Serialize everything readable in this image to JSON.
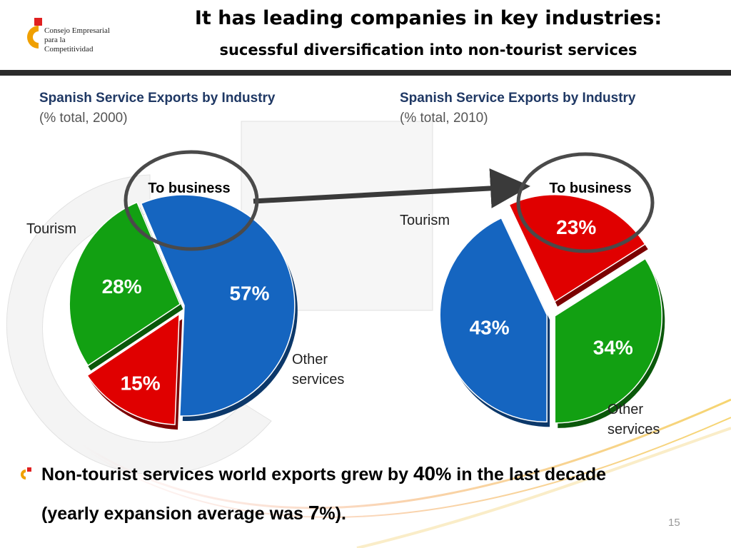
{
  "logo": {
    "name": "Consejo Empresarial para la Competitividad",
    "lines": [
      "Consejo Empresarial",
      "para la",
      "Competitividad"
    ]
  },
  "header": {
    "title": "It has leading companies in key industries:",
    "subtitle": "sucessful diversification into non-tourist services"
  },
  "colors": {
    "tourism": "#1565c0",
    "business": "#e00000",
    "other": "#12a012",
    "circle": "#4a4a4a"
  },
  "chart_data": [
    {
      "type": "pie",
      "title": "Spanish Service Exports by Industry",
      "subtitle": "(% total, 2000)",
      "slices": [
        {
          "name": "Tourism",
          "label": "Tourism",
          "value": 57,
          "value_label": "57%"
        },
        {
          "name": "To business",
          "label": "To business",
          "value": 15,
          "value_label": "15%"
        },
        {
          "name": "Other services",
          "label": "Other services",
          "value": 28,
          "value_label": "28%"
        }
      ]
    },
    {
      "type": "pie",
      "title": "Spanish Service Exports by Industry",
      "subtitle": "(% total, 2010)",
      "slices": [
        {
          "name": "Tourism",
          "label": "Tourism",
          "value": 43,
          "value_label": "43%"
        },
        {
          "name": "To business",
          "label": "To business",
          "value": 23,
          "value_label": "23%"
        },
        {
          "name": "Other services",
          "label": "Other services",
          "value": 34,
          "value_label": "34%"
        }
      ]
    }
  ],
  "footnote": {
    "line1_pre": "Non-tourist services world exports grew by ",
    "line1_num": "40",
    "line1_post": "% in the last decade",
    "line2_pre": "(yearly expansion average was ",
    "line2_num": "7",
    "line2_post": "%)."
  },
  "page_number": "15"
}
